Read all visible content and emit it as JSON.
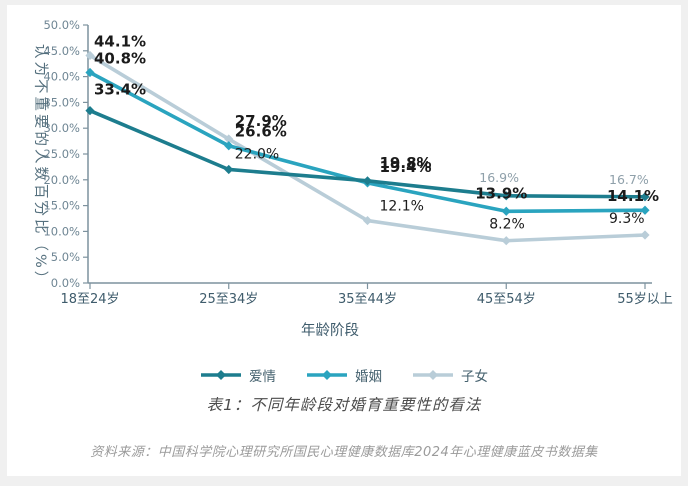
{
  "chart_data": {
    "type": "line",
    "title": "表1：不同年龄段对婚育重要性的看法",
    "xlabel": "年龄阶段",
    "ylabel": "认为不重要的人数百分比（%）",
    "categories": [
      "18至24岁",
      "25至34岁",
      "35至44岁",
      "45至54岁",
      "55岁以上"
    ],
    "ylim": [
      0,
      50
    ],
    "grid": false,
    "legend_position": "bottom",
    "marker": "diamond",
    "yticks": {
      "values": [
        0,
        5,
        10,
        15,
        20,
        25,
        30,
        35,
        40,
        45,
        50
      ],
      "labels": [
        "0.0%",
        "5.0%",
        "10.0%",
        "15.0%",
        "20.0%",
        "25.0%",
        "30.0%",
        "35.0%",
        "40.0%",
        "45.0%",
        "50.0%"
      ]
    },
    "series": [
      {
        "name": "爱情",
        "color": "#1d7d8e",
        "values": [
          33.4,
          22.0,
          19.8,
          16.9,
          16.7
        ],
        "point_labels": [
          {
            "text": "33.4%",
            "emphasis": "bold"
          },
          {
            "text": "22.0%",
            "emphasis": "normal"
          },
          {
            "text": "19.8%",
            "emphasis": "bold"
          },
          {
            "text": "16.9%",
            "emphasis": "muted"
          },
          {
            "text": "16.7%",
            "emphasis": "muted"
          }
        ]
      },
      {
        "name": "婚姻",
        "color": "#2aa4bf",
        "values": [
          40.8,
          26.6,
          19.4,
          13.9,
          14.1
        ],
        "point_labels": [
          {
            "text": "40.8%",
            "emphasis": "bold"
          },
          {
            "text": "26.6%",
            "emphasis": "bold"
          },
          {
            "text": "19.4%",
            "emphasis": "bold"
          },
          {
            "text": "13.9%",
            "emphasis": "bold"
          },
          {
            "text": "14.1%",
            "emphasis": "bold"
          }
        ]
      },
      {
        "name": "子女",
        "color": "#b9cdd8",
        "values": [
          44.1,
          27.9,
          12.1,
          8.2,
          9.3
        ],
        "point_labels": [
          {
            "text": "44.1%",
            "emphasis": "bold"
          },
          {
            "text": "27.9%",
            "emphasis": "bold"
          },
          {
            "text": "12.1%",
            "emphasis": "normal"
          },
          {
            "text": "8.2%",
            "emphasis": "normal"
          },
          {
            "text": "9.3%",
            "emphasis": "normal"
          }
        ]
      }
    ]
  },
  "source_note": "资料来源：中国科学院心理研究所国民心理健康数据库2024年心理健康蓝皮书数据集",
  "colors": {
    "axis": "#7d929e",
    "ytick_text": "#6f8694",
    "xtick_text": "#3f5c6c",
    "label_dark": "#1b1b1b",
    "label_muted": "#8fa0aa",
    "ylabel_text": "#55707e"
  }
}
